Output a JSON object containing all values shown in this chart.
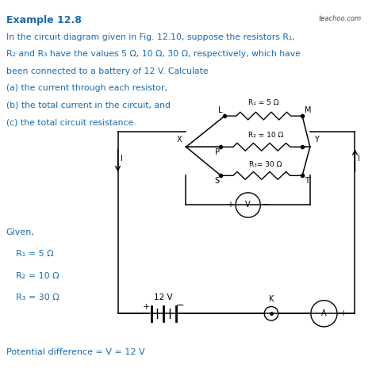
{
  "title": "Example 12.8",
  "watermark": "teachoo.com",
  "background_color": "#ffffff",
  "text_color": "#000000",
  "blue_color": "#1a6aad",
  "problem_lines": [
    "In the circuit diagram given in Fig. 12.10, suppose the resistors R₁,",
    "R₂ and R₃ have the values 5 Ω, 10 Ω, 30 Ω, respectively, which have",
    "been connected to a battery of 12 V. Calculate",
    "(a) the current through each resistor,",
    "(b) the total current in the circuit, and",
    "(c) the total circuit resistance."
  ],
  "given_lines": [
    "Given,",
    "R₁ = 5 Ω",
    "R₂ = 10 Ω",
    "R₃ = 30 Ω"
  ],
  "footer": "Potential difference = V = 12 V",
  "r1_label": "R₁ = 5 Ω",
  "r2_label": "R₂ = 10 Ω",
  "r3_label": "R₃= 30 Ω",
  "battery_label": "12 V",
  "node_labels": [
    "X",
    "Y",
    "L",
    "M",
    "P",
    "S",
    "T"
  ],
  "current_label": "I"
}
